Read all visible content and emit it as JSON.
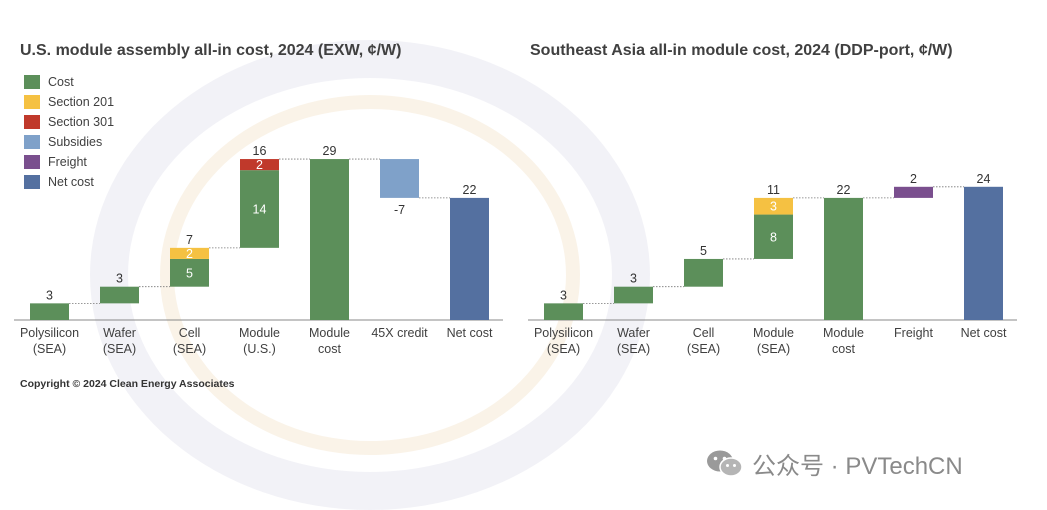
{
  "colors": {
    "cost": "#5c8f5a",
    "section201": "#f5c142",
    "section301": "#c0392b",
    "subsidies": "#7fa1c9",
    "freight": "#7a4f8e",
    "netcost": "#5470a0"
  },
  "legend": [
    {
      "label": "Cost",
      "color_key": "cost"
    },
    {
      "label": "Section 201",
      "color_key": "section201"
    },
    {
      "label": "Section 301",
      "color_key": "section301"
    },
    {
      "label": "Subsidies",
      "color_key": "subsidies"
    },
    {
      "label": "Freight",
      "color_key": "freight"
    },
    {
      "label": "Net cost",
      "color_key": "netcost"
    }
  ],
  "copyright": "Copyright © 2024 Clean Energy Associates",
  "watermark": {
    "text": "公众号 · PVTechCN",
    "icon": "wechat-icon"
  },
  "chart_data": [
    {
      "type": "waterfall",
      "title": "U.S. module assembly all-in cost, 2024 (EXW, ¢/W)",
      "ylim": [
        0,
        30
      ],
      "categories": [
        [
          "Polysilicon",
          "(SEA)"
        ],
        [
          "Wafer",
          "(SEA)"
        ],
        [
          "Cell",
          "(SEA)"
        ],
        [
          "Module",
          "(U.S.)"
        ],
        [
          "Module",
          "cost"
        ],
        [
          "45X credit"
        ],
        [
          "Net cost"
        ]
      ],
      "bars": [
        {
          "segments": [
            {
              "value": 3,
              "color_key": "cost",
              "label": ""
            }
          ],
          "total_label": "3"
        },
        {
          "segments": [
            {
              "value": 3,
              "color_key": "cost",
              "label": ""
            }
          ],
          "total_label": "3"
        },
        {
          "segments": [
            {
              "value": 5,
              "color_key": "cost",
              "label": "5"
            },
            {
              "value": 2,
              "color_key": "section201",
              "label": "2"
            }
          ],
          "total_label": "7"
        },
        {
          "segments": [
            {
              "value": 14,
              "color_key": "cost",
              "label": "14"
            },
            {
              "value": 2,
              "color_key": "section301",
              "label": "2"
            }
          ],
          "total_label": "16"
        },
        {
          "total": true,
          "value": 29,
          "color_key": "cost",
          "total_label": "29"
        },
        {
          "segments": [
            {
              "value": -7,
              "color_key": "subsidies",
              "label": ""
            }
          ],
          "total_label": "-7",
          "label_below": true
        },
        {
          "total": true,
          "value": 22,
          "color_key": "netcost",
          "total_label": "22"
        }
      ]
    },
    {
      "type": "waterfall",
      "title": "Southeast Asia all-in module cost, 2024 (DDP-port, ¢/W)",
      "ylim": [
        0,
        30
      ],
      "categories": [
        [
          "Polysilicon",
          "(SEA)"
        ],
        [
          "Wafer",
          "(SEA)"
        ],
        [
          "Cell",
          "(SEA)"
        ],
        [
          "Module",
          "(SEA)"
        ],
        [
          "Module",
          "cost"
        ],
        [
          "Freight"
        ],
        [
          "Net cost"
        ]
      ],
      "bars": [
        {
          "segments": [
            {
              "value": 3,
              "color_key": "cost",
              "label": ""
            }
          ],
          "total_label": "3"
        },
        {
          "segments": [
            {
              "value": 3,
              "color_key": "cost",
              "label": ""
            }
          ],
          "total_label": "3"
        },
        {
          "segments": [
            {
              "value": 5,
              "color_key": "cost",
              "label": ""
            }
          ],
          "total_label": "5"
        },
        {
          "segments": [
            {
              "value": 8,
              "color_key": "cost",
              "label": "8"
            },
            {
              "value": 3,
              "color_key": "section201",
              "label": "3"
            }
          ],
          "total_label": "11"
        },
        {
          "total": true,
          "value": 22,
          "color_key": "cost",
          "total_label": "22"
        },
        {
          "segments": [
            {
              "value": 2,
              "color_key": "freight",
              "label": ""
            }
          ],
          "total_label": "2"
        },
        {
          "total": true,
          "value": 24,
          "color_key": "netcost",
          "total_label": "24"
        }
      ]
    }
  ]
}
